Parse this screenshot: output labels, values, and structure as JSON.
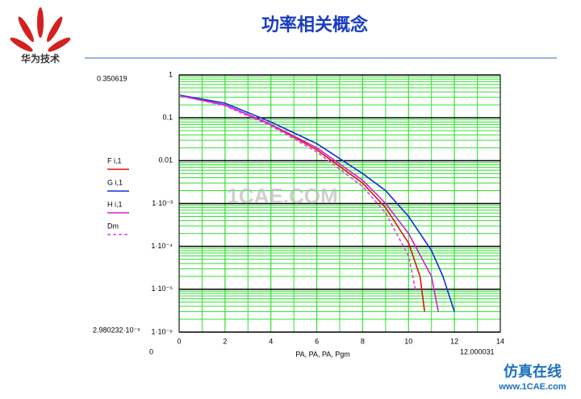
{
  "header": {
    "title": "功率相关概念",
    "logo_text": "华为技术"
  },
  "chart_data": {
    "type": "line",
    "xlabel": "PA, PA, PA, Pgm",
    "xlim": [
      0,
      14
    ],
    "xticks": [
      0,
      2,
      4,
      6,
      8,
      10,
      12,
      14
    ],
    "ylim": [
      1e-06,
      1
    ],
    "log_y": true,
    "yticks": [
      1,
      0.1,
      0.01,
      {
        "value": 0.001,
        "label": "1·10⁻³"
      },
      {
        "value": 0.0001,
        "label": "1·10⁻⁴"
      },
      {
        "value": 1e-05,
        "label": "1·10⁻⁵"
      },
      {
        "value": 1e-06,
        "label": "1·10⁻⁶"
      }
    ],
    "annotations": [
      "0.350619",
      "2.980232·10⁻⁶",
      "0",
      "12.000031"
    ],
    "series": [
      {
        "name": "F i,1",
        "color": "#e01010",
        "dash": false,
        "x": [
          0,
          2,
          4,
          6,
          8,
          9,
          10,
          10.5,
          10.7
        ],
        "values": [
          0.33,
          0.2,
          0.07,
          0.018,
          0.003,
          0.0008,
          0.00012,
          2e-05,
          3e-06
        ]
      },
      {
        "name": "G i,1",
        "color": "#1030d0",
        "dash": false,
        "x": [
          0,
          2,
          4,
          6,
          8,
          9,
          10,
          11,
          11.5,
          12
        ],
        "values": [
          0.34,
          0.22,
          0.08,
          0.025,
          0.005,
          0.002,
          0.0005,
          8e-05,
          2e-05,
          3e-06
        ]
      },
      {
        "name": "H i,1",
        "color": "#d020d0",
        "dash": false,
        "x": [
          0,
          2,
          4,
          6,
          8,
          9,
          10,
          11,
          11.3
        ],
        "values": [
          0.33,
          0.2,
          0.07,
          0.02,
          0.0035,
          0.001,
          0.0002,
          2e-05,
          3e-06
        ]
      },
      {
        "name": "Dm",
        "color": "#e040e0",
        "dash": true,
        "x": [
          0,
          2,
          4,
          6,
          8,
          9,
          10,
          10.3
        ],
        "values": [
          0.33,
          0.19,
          0.065,
          0.016,
          0.0025,
          0.0006,
          6e-05,
          1e-05
        ]
      }
    ]
  },
  "watermark": {
    "center": "1CAE.COM",
    "corner_cn": "仿真在线",
    "corner_url": "www.1CAE.com"
  }
}
